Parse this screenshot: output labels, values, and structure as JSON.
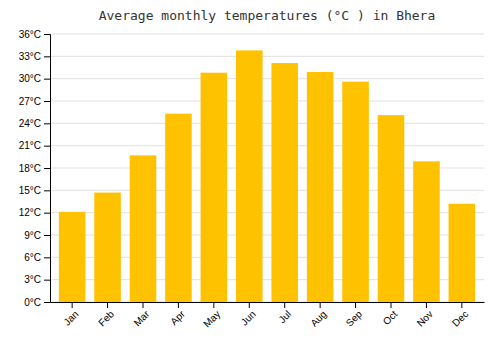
{
  "chart_data": {
    "type": "bar",
    "title": "Average monthly temperatures (°C ) in Bhera",
    "categories": [
      "Jan",
      "Feb",
      "Mar",
      "Apr",
      "May",
      "Jun",
      "Jul",
      "Aug",
      "Sep",
      "Oct",
      "Nov",
      "Dec"
    ],
    "values": [
      12.1,
      14.7,
      19.7,
      25.3,
      30.8,
      33.8,
      32.1,
      30.9,
      29.6,
      25.1,
      18.9,
      13.2
    ],
    "color": "#FFC200",
    "ylim": [
      0,
      36
    ],
    "yticks": [
      {
        "value": 0,
        "label": "0°C"
      },
      {
        "value": 3,
        "label": "3°C"
      },
      {
        "value": 6,
        "label": "6°C"
      },
      {
        "value": 9,
        "label": "9°C"
      },
      {
        "value": 12,
        "label": "12°C"
      },
      {
        "value": 15,
        "label": "15°C"
      },
      {
        "value": 18,
        "label": "18°C"
      },
      {
        "value": 21,
        "label": "21°C"
      },
      {
        "value": 24,
        "label": "24°C"
      },
      {
        "value": 27,
        "label": "27°C"
      },
      {
        "value": 30,
        "label": "30°C"
      },
      {
        "value": 33,
        "label": "33°C"
      },
      {
        "value": 36,
        "label": "36°C"
      }
    ],
    "grid": true
  }
}
